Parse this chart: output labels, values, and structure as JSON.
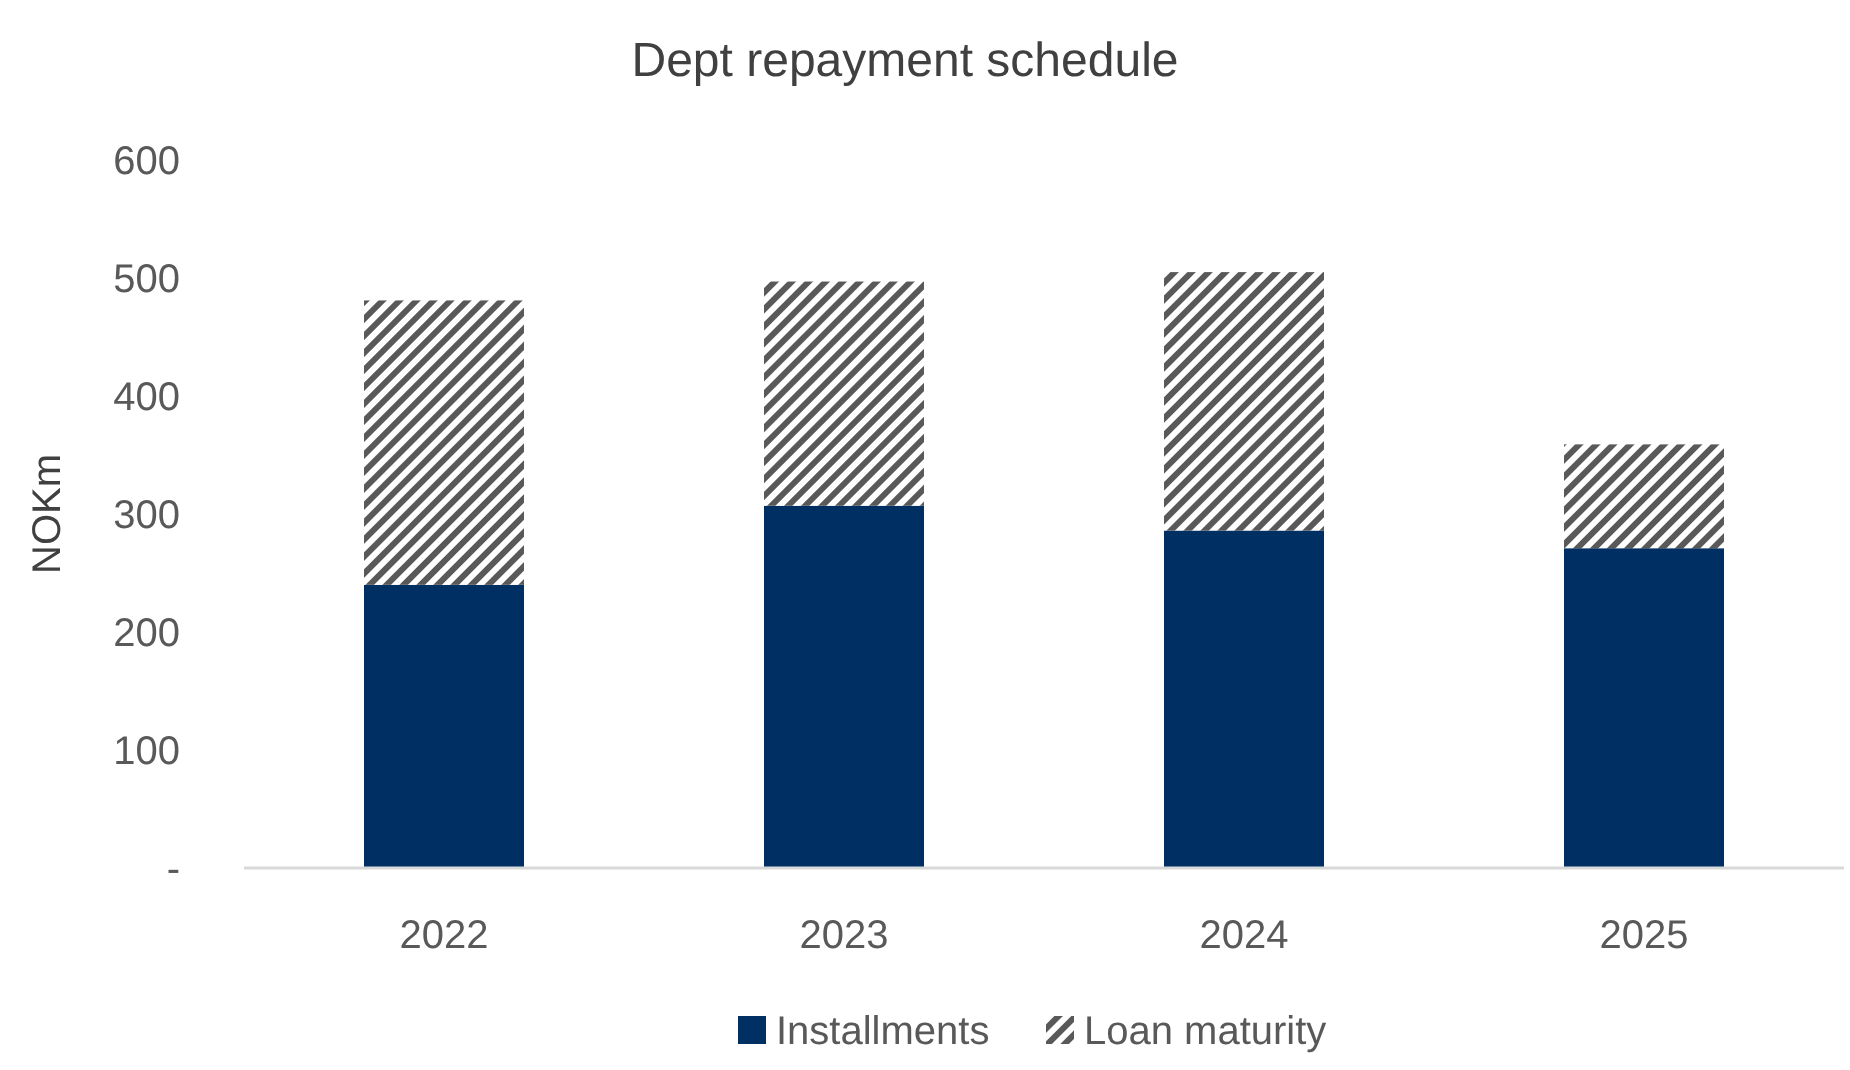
{
  "chart_data": {
    "type": "bar",
    "title": "Dept repayment schedule",
    "ylabel": "NOKm",
    "categories": [
      "2022",
      "2023",
      "2024",
      "2025"
    ],
    "stacked": true,
    "ylim": [
      0,
      600
    ],
    "yticks": [
      {
        "value": 0,
        "label": "-"
      },
      100,
      200,
      300,
      400,
      500,
      600
    ],
    "grid": false,
    "legend": "bottom",
    "series": [
      {
        "name": "Installments",
        "color": "#003063",
        "values": [
          240,
          307,
          286,
          271
        ]
      },
      {
        "name": "Loan maturity",
        "color": "#595959",
        "values": [
          241,
          190,
          219,
          88
        ]
      }
    ]
  }
}
